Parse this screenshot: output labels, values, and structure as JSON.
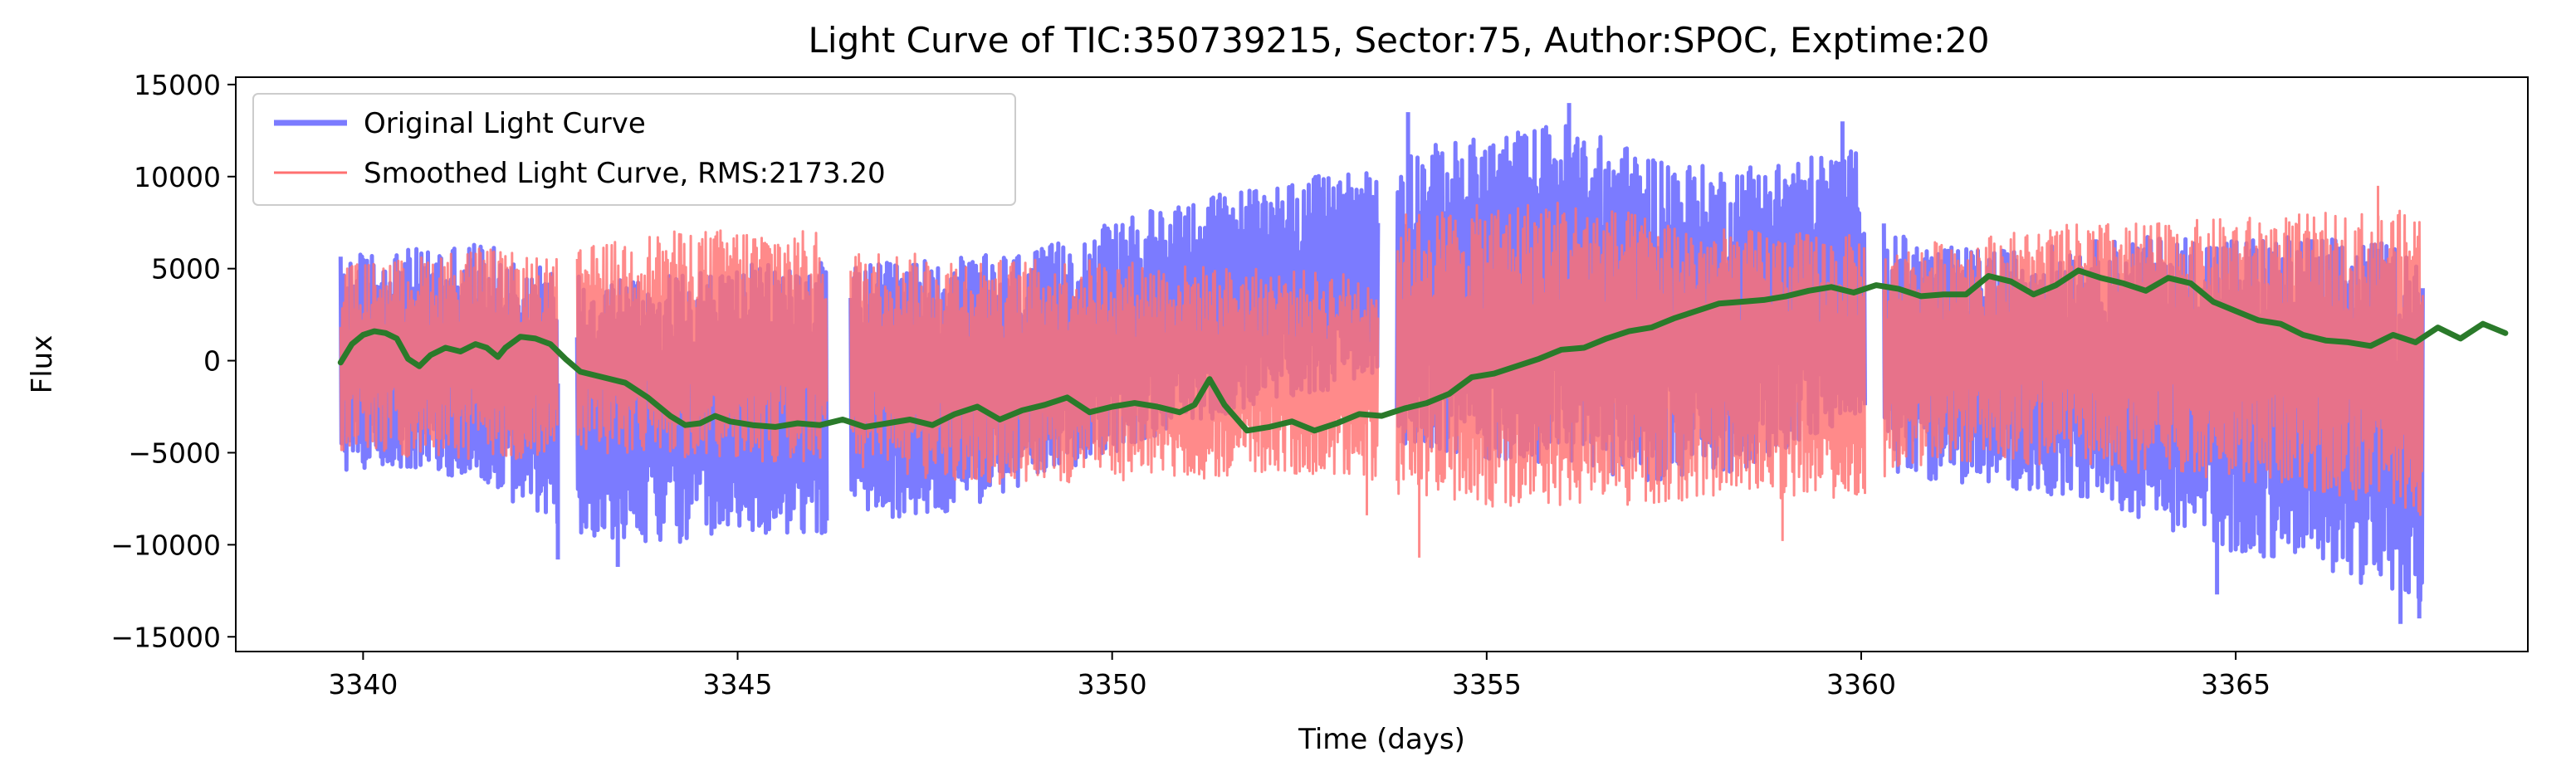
{
  "chart_data": {
    "type": "line",
    "title": "Light Curve of TIC:350739215, Sector:75, Author:SPOC, Exptime:20",
    "xlabel": "Time (days)",
    "ylabel": "Flux",
    "xlim": [
      3338.3,
      3368.9
    ],
    "ylim": [
      -15800,
      15400
    ],
    "xticks": [
      3340,
      3345,
      3350,
      3355,
      3360,
      3365
    ],
    "xtick_labels": [
      "3340",
      "3345",
      "3350",
      "3355",
      "3360",
      "3365"
    ],
    "yticks": [
      -15000,
      -10000,
      -5000,
      0,
      5000,
      10000,
      15000
    ],
    "ytick_labels": [
      "−15000",
      "−10000",
      "−5000",
      "0",
      "5000",
      "10000",
      "15000"
    ],
    "grid": false,
    "legend_position": "top-left",
    "data_gaps": [
      [
        3342.6,
        3342.85
      ],
      [
        3346.2,
        3346.5
      ],
      [
        3353.55,
        3353.8
      ],
      [
        3360.05,
        3360.3
      ]
    ],
    "series": [
      {
        "name": "Original Light Curve",
        "color": "#7b7bff",
        "style": "noisy-band",
        "band_upper": [
          [
            3339.7,
            5800
          ],
          [
            3340.5,
            6000
          ],
          [
            3341.5,
            6500
          ],
          [
            3342.5,
            5000
          ],
          [
            3343,
            4800
          ],
          [
            3344,
            4600
          ],
          [
            3345,
            5200
          ],
          [
            3346.2,
            5400
          ],
          [
            3346.6,
            5200
          ],
          [
            3347.5,
            5500
          ],
          [
            3348.5,
            5800
          ],
          [
            3349,
            6000
          ],
          [
            3350,
            7500
          ],
          [
            3351,
            8800
          ],
          [
            3352,
            9500
          ],
          [
            3353,
            10200
          ],
          [
            3353.5,
            10500
          ],
          [
            3353.9,
            11500
          ],
          [
            3355,
            12200
          ],
          [
            3356,
            13000
          ],
          [
            3357,
            11500
          ],
          [
            3358,
            10500
          ],
          [
            3359,
            11000
          ],
          [
            3360,
            11500
          ],
          [
            3360.4,
            7000
          ],
          [
            3361,
            6200
          ],
          [
            3362,
            6000
          ],
          [
            3363,
            6500
          ],
          [
            3364,
            6800
          ],
          [
            3365,
            6800
          ],
          [
            3366,
            6800
          ],
          [
            3367.5,
            6200
          ]
        ],
        "band_lower": [
          [
            3339.7,
            -6000
          ],
          [
            3340.5,
            -5800
          ],
          [
            3341.5,
            -6500
          ],
          [
            3342.5,
            -9000
          ],
          [
            3343,
            -9500
          ],
          [
            3344,
            -10000
          ],
          [
            3345,
            -9500
          ],
          [
            3346.2,
            -9500
          ],
          [
            3346.6,
            -8500
          ],
          [
            3347.5,
            -8500
          ],
          [
            3348.5,
            -7500
          ],
          [
            3349,
            -6500
          ],
          [
            3350,
            -5000
          ],
          [
            3351,
            -3500
          ],
          [
            3352,
            -2500
          ],
          [
            3353,
            -1500
          ],
          [
            3353.5,
            -800
          ],
          [
            3353.9,
            -4500
          ],
          [
            3355,
            -5500
          ],
          [
            3356,
            -5500
          ],
          [
            3357,
            -6500
          ],
          [
            3358,
            -6500
          ],
          [
            3359,
            -5000
          ],
          [
            3360,
            -3000
          ],
          [
            3360.4,
            -6000
          ],
          [
            3361,
            -6500
          ],
          [
            3362,
            -7000
          ],
          [
            3363,
            -7500
          ],
          [
            3364,
            -9000
          ],
          [
            3365,
            -10500
          ],
          [
            3366,
            -11000
          ],
          [
            3367.5,
            -13500
          ]
        ],
        "spikes": [
          [
            3356.1,
            14000
          ],
          [
            3353.95,
            13500
          ],
          [
            3359.75,
            13000
          ],
          [
            3342.6,
            -10800
          ],
          [
            3343.4,
            -11200
          ],
          [
            3364.75,
            -12700
          ],
          [
            3367.2,
            -14300
          ],
          [
            3367.45,
            -14000
          ]
        ]
      },
      {
        "name": "Smoothed Light Curve, RMS:2173.20",
        "color": "#ff7070",
        "style": "noisy-band",
        "band_upper": [
          [
            3339.7,
            5200
          ],
          [
            3340.5,
            5500
          ],
          [
            3341.5,
            6200
          ],
          [
            3342.5,
            5500
          ],
          [
            3343,
            6200
          ],
          [
            3344,
            7000
          ],
          [
            3345,
            7200
          ],
          [
            3346.2,
            7000
          ],
          [
            3346.6,
            6000
          ],
          [
            3347.5,
            5800
          ],
          [
            3348.5,
            5500
          ],
          [
            3349,
            5500
          ],
          [
            3350,
            5500
          ],
          [
            3351,
            5200
          ],
          [
            3352,
            5000
          ],
          [
            3353,
            4800
          ],
          [
            3353.5,
            4800
          ],
          [
            3353.9,
            8000
          ],
          [
            3355,
            8500
          ],
          [
            3356,
            8800
          ],
          [
            3357,
            8000
          ],
          [
            3358,
            7200
          ],
          [
            3359,
            7000
          ],
          [
            3360,
            6800
          ],
          [
            3360.4,
            6000
          ],
          [
            3361,
            6500
          ],
          [
            3362,
            7000
          ],
          [
            3363,
            7500
          ],
          [
            3364,
            7500
          ],
          [
            3365,
            7800
          ],
          [
            3366,
            8000
          ],
          [
            3367.5,
            8200
          ]
        ],
        "band_lower": [
          [
            3339.7,
            -5000
          ],
          [
            3340.5,
            -5200
          ],
          [
            3341.5,
            -5500
          ],
          [
            3342.5,
            -5500
          ],
          [
            3343,
            -5000
          ],
          [
            3344,
            -5200
          ],
          [
            3345,
            -5500
          ],
          [
            3346.2,
            -5500
          ],
          [
            3346.6,
            -6000
          ],
          [
            3347.5,
            -6500
          ],
          [
            3348.5,
            -6800
          ],
          [
            3349,
            -6800
          ],
          [
            3350,
            -6500
          ],
          [
            3351,
            -6500
          ],
          [
            3352,
            -6200
          ],
          [
            3353,
            -6200
          ],
          [
            3353.5,
            -6500
          ],
          [
            3353.9,
            -7500
          ],
          [
            3355,
            -8000
          ],
          [
            3356,
            -8000
          ],
          [
            3357,
            -7800
          ],
          [
            3358,
            -7500
          ],
          [
            3359,
            -7500
          ],
          [
            3360,
            -7500
          ],
          [
            3360.4,
            -6000
          ],
          [
            3361,
            -5500
          ],
          [
            3362,
            -5500
          ],
          [
            3363,
            -6000
          ],
          [
            3364,
            -6200
          ],
          [
            3365,
            -6500
          ],
          [
            3366,
            -7000
          ],
          [
            3367.5,
            -8500
          ]
        ],
        "spikes": [
          [
            3354.1,
            -10700
          ],
          [
            3358.95,
            -9800
          ],
          [
            3353.4,
            -8400
          ],
          [
            3366.9,
            9500
          ]
        ]
      },
      {
        "name": "",
        "color": "#2a7a2a",
        "style": "line",
        "points": [
          [
            3339.7,
            -100
          ],
          [
            3339.85,
            900
          ],
          [
            3340,
            1400
          ],
          [
            3340.15,
            1600
          ],
          [
            3340.3,
            1500
          ],
          [
            3340.45,
            1200
          ],
          [
            3340.6,
            100
          ],
          [
            3340.75,
            -300
          ],
          [
            3340.9,
            300
          ],
          [
            3341.1,
            700
          ],
          [
            3341.3,
            500
          ],
          [
            3341.5,
            900
          ],
          [
            3341.65,
            700
          ],
          [
            3341.8,
            200
          ],
          [
            3341.9,
            700
          ],
          [
            3342.1,
            1300
          ],
          [
            3342.3,
            1200
          ],
          [
            3342.5,
            900
          ],
          [
            3342.7,
            100
          ],
          [
            3342.9,
            -600
          ],
          [
            3343.2,
            -900
          ],
          [
            3343.5,
            -1200
          ],
          [
            3343.8,
            -2000
          ],
          [
            3344.1,
            -3000
          ],
          [
            3344.3,
            -3500
          ],
          [
            3344.5,
            -3400
          ],
          [
            3344.7,
            -3000
          ],
          [
            3344.9,
            -3300
          ],
          [
            3345.2,
            -3500
          ],
          [
            3345.5,
            -3600
          ],
          [
            3345.8,
            -3400
          ],
          [
            3346.1,
            -3500
          ],
          [
            3346.4,
            -3200
          ],
          [
            3346.7,
            -3600
          ],
          [
            3347,
            -3400
          ],
          [
            3347.3,
            -3200
          ],
          [
            3347.6,
            -3500
          ],
          [
            3347.9,
            -2900
          ],
          [
            3348.2,
            -2500
          ],
          [
            3348.5,
            -3200
          ],
          [
            3348.8,
            -2700
          ],
          [
            3349.1,
            -2400
          ],
          [
            3349.4,
            -2000
          ],
          [
            3349.7,
            -2800
          ],
          [
            3350,
            -2500
          ],
          [
            3350.3,
            -2300
          ],
          [
            3350.6,
            -2500
          ],
          [
            3350.9,
            -2800
          ],
          [
            3351.1,
            -2400
          ],
          [
            3351.3,
            -1000
          ],
          [
            3351.5,
            -2400
          ],
          [
            3351.8,
            -3800
          ],
          [
            3352.1,
            -3600
          ],
          [
            3352.4,
            -3300
          ],
          [
            3352.7,
            -3800
          ],
          [
            3353,
            -3400
          ],
          [
            3353.3,
            -2900
          ],
          [
            3353.6,
            -3000
          ],
          [
            3353.9,
            -2600
          ],
          [
            3354.2,
            -2300
          ],
          [
            3354.5,
            -1800
          ],
          [
            3354.8,
            -900
          ],
          [
            3355.1,
            -700
          ],
          [
            3355.4,
            -300
          ],
          [
            3355.7,
            100
          ],
          [
            3356,
            600
          ],
          [
            3356.3,
            700
          ],
          [
            3356.6,
            1200
          ],
          [
            3356.9,
            1600
          ],
          [
            3357.2,
            1800
          ],
          [
            3357.5,
            2300
          ],
          [
            3357.8,
            2700
          ],
          [
            3358.1,
            3100
          ],
          [
            3358.4,
            3200
          ],
          [
            3358.7,
            3300
          ],
          [
            3359,
            3500
          ],
          [
            3359.3,
            3800
          ],
          [
            3359.6,
            4000
          ],
          [
            3359.9,
            3700
          ],
          [
            3360.2,
            4100
          ],
          [
            3360.5,
            3900
          ],
          [
            3360.8,
            3500
          ],
          [
            3361.1,
            3600
          ],
          [
            3361.4,
            3600
          ],
          [
            3361.7,
            4600
          ],
          [
            3362,
            4300
          ],
          [
            3362.3,
            3600
          ],
          [
            3362.6,
            4100
          ],
          [
            3362.9,
            4900
          ],
          [
            3363.2,
            4500
          ],
          [
            3363.5,
            4200
          ],
          [
            3363.8,
            3800
          ],
          [
            3364.1,
            4500
          ],
          [
            3364.4,
            4200
          ],
          [
            3364.7,
            3200
          ],
          [
            3365,
            2700
          ],
          [
            3365.3,
            2200
          ],
          [
            3365.6,
            2000
          ],
          [
            3365.9,
            1400
          ],
          [
            3366.2,
            1100
          ],
          [
            3366.5,
            1000
          ],
          [
            3366.8,
            800
          ],
          [
            3367.1,
            1400
          ],
          [
            3367.4,
            1000
          ],
          [
            3367.7,
            1800
          ],
          [
            3368,
            1200
          ],
          [
            3368.3,
            2000
          ],
          [
            3368.6,
            1500
          ]
        ]
      }
    ]
  }
}
